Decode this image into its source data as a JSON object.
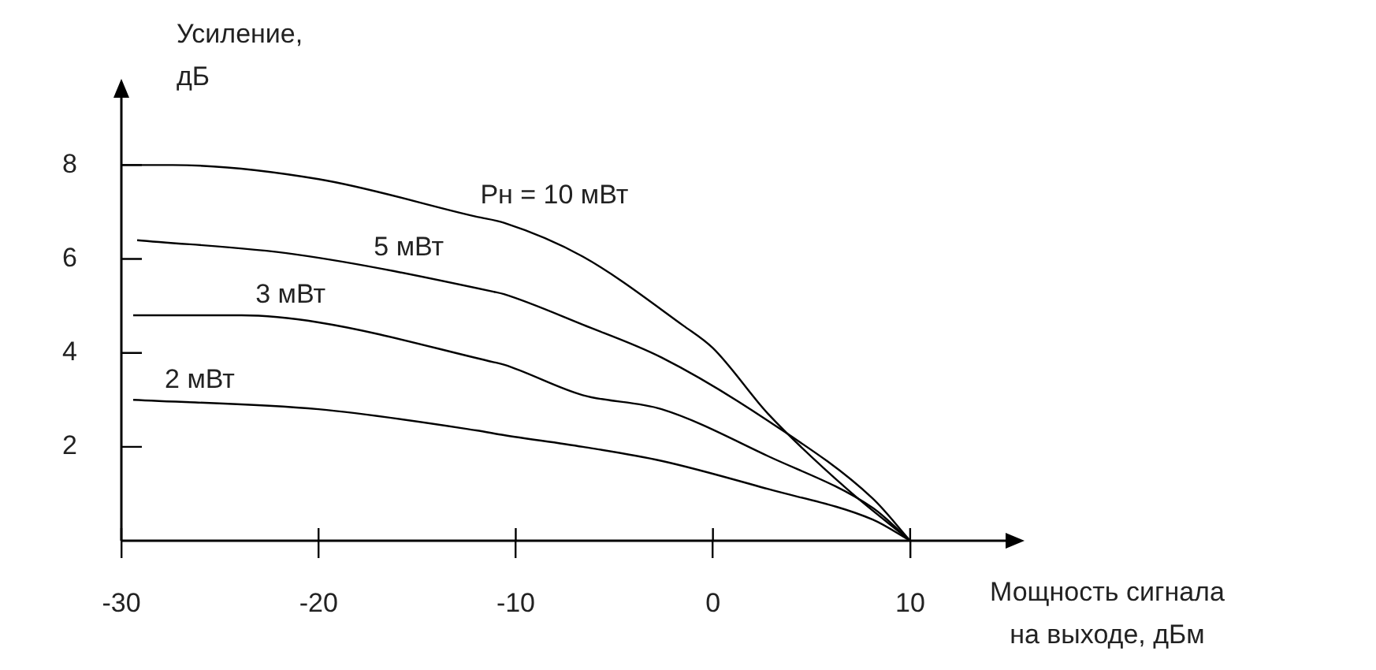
{
  "chart_data": {
    "type": "line",
    "xlabel": "Мощность сигнала\nна выходе, дБм",
    "ylabel": "Усиление,\nдБ",
    "xlim": [
      -30,
      15
    ],
    "xticks": [
      -30,
      -20,
      -10,
      0,
      10
    ],
    "ylim": [
      0,
      9.5
    ],
    "yticks": [
      2,
      4,
      6,
      8
    ],
    "grid": false,
    "legend": false,
    "marker": "none",
    "line_style": "solid",
    "series": [
      {
        "name": "Pн = 10 мВт",
        "color": "#000000",
        "x": [
          -30,
          -27.4,
          -20,
          -12,
          -10.6,
          -6.6,
          -1.5,
          0,
          2.8,
          6.8,
          10
        ],
        "values": [
          8.0,
          8.0,
          7.7,
          6.9,
          6.77,
          6.05,
          4.58,
          4.1,
          2.7,
          1.1,
          0
        ]
      },
      {
        "name": "5 мВт",
        "color": "#000000",
        "x": [
          -29.2,
          -21.2,
          -11.1,
          -10.6,
          -6.6,
          -2.6,
          2.8,
          8.1,
          10
        ],
        "values": [
          6.4,
          6.1,
          5.3,
          5.25,
          4.6,
          3.9,
          2.55,
          0.9,
          0
        ]
      },
      {
        "name": "3 мВт",
        "color": "#000000",
        "x": [
          -29.4,
          -23.9,
          -20,
          -11.1,
          -10.6,
          -6.6,
          -2.6,
          2.8,
          8.1,
          10
        ],
        "values": [
          4.8,
          4.8,
          4.65,
          3.8,
          3.75,
          3.1,
          2.8,
          1.8,
          0.7,
          0
        ]
      },
      {
        "name": "2 мВт",
        "color": "#000000",
        "x": [
          -29.4,
          -20,
          -12,
          -10.6,
          -6.6,
          -2.6,
          2.8,
          8.1,
          10
        ],
        "values": [
          3.0,
          2.8,
          2.35,
          2.25,
          2.0,
          1.7,
          1.1,
          0.45,
          0
        ]
      }
    ]
  }
}
